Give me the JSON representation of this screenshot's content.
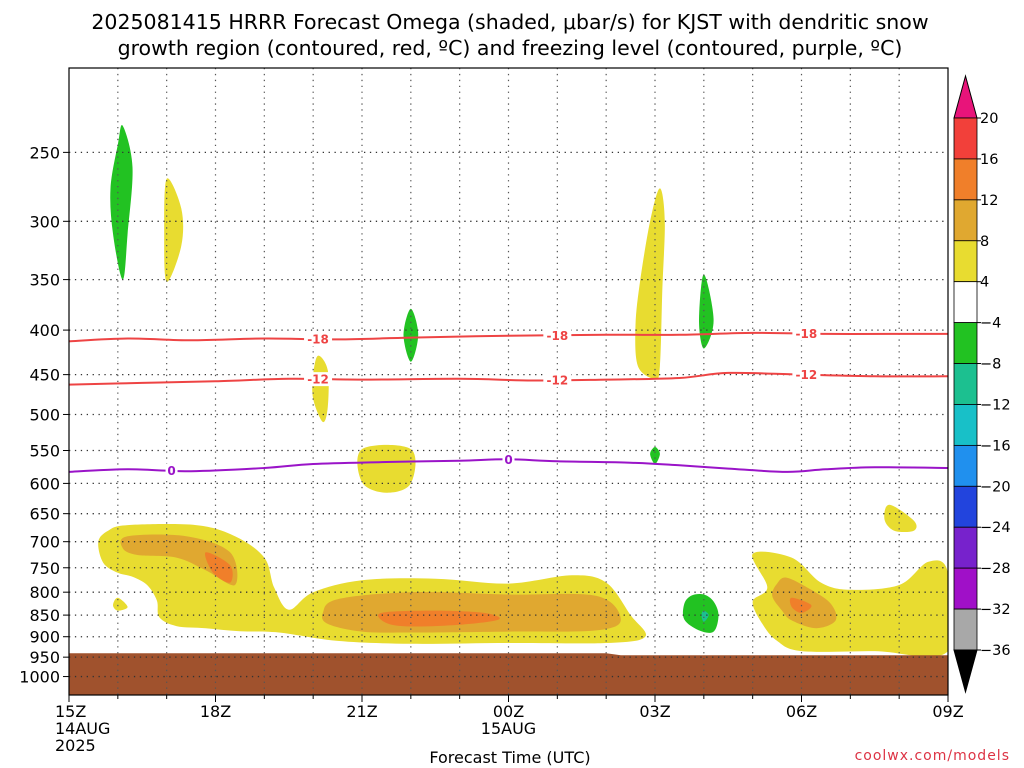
{
  "chart_data": {
    "type": "heatmap",
    "title": "2025081415 HRRR Forecast Omega (shaded, μbar/s) for KJST with dendritic snow",
    "subtitle": "growth region (contoured, red, ºC) and freezing level (contoured, purple, ºC)",
    "xlabel": "Forecast Time (UTC)",
    "ylabel": "",
    "credit": "coolwx.com/models",
    "x_range_hours": [
      0,
      18
    ],
    "y_range_hpa": [
      1050,
      200
    ],
    "y_scale": "log-pressure",
    "grid": true,
    "x_ticks": [
      {
        "hour": 0,
        "lines": [
          "15Z",
          "14AUG",
          "2025"
        ]
      },
      {
        "hour": 3,
        "lines": [
          "18Z"
        ]
      },
      {
        "hour": 6,
        "lines": [
          "21Z"
        ]
      },
      {
        "hour": 9,
        "lines": [
          "00Z",
          "15AUG"
        ]
      },
      {
        "hour": 12,
        "lines": [
          "03Z"
        ]
      },
      {
        "hour": 15,
        "lines": [
          "06Z"
        ]
      },
      {
        "hour": 18,
        "lines": [
          "09Z"
        ]
      }
    ],
    "y_ticks": [
      250,
      300,
      350,
      400,
      450,
      500,
      550,
      600,
      650,
      700,
      750,
      800,
      850,
      900,
      950,
      1000
    ],
    "colorbar": {
      "labels": [
        "20",
        "16",
        "12",
        "8",
        "4",
        "−4",
        "−8",
        "−12",
        "−16",
        "−20",
        "−24",
        "−28",
        "−32",
        "−36"
      ],
      "bins": [
        {
          "low": 16,
          "high": 20,
          "color": "#f2403a"
        },
        {
          "low": 12,
          "high": 16,
          "color": "#f07f2a"
        },
        {
          "low": 8,
          "high": 12,
          "color": "#e0a830"
        },
        {
          "low": 4,
          "high": 8,
          "color": "#e8dc30"
        },
        {
          "low": -4,
          "high": 4,
          "color": "#ffffff"
        },
        {
          "low": -8,
          "high": -4,
          "color": "#22c222"
        },
        {
          "low": -12,
          "high": -8,
          "color": "#1cc090"
        },
        {
          "low": -16,
          "high": -12,
          "color": "#18c0c8"
        },
        {
          "low": -20,
          "high": -16,
          "color": "#2090ee"
        },
        {
          "low": -24,
          "high": -20,
          "color": "#2244dd"
        },
        {
          "low": -28,
          "high": -24,
          "color": "#7722cc"
        },
        {
          "low": -32,
          "high": -28,
          "color": "#a010c8"
        },
        {
          "low": -36,
          "high": -32,
          "color": "#a8a8a8"
        }
      ],
      "above_color": "#e8147a",
      "below_color": "#000000"
    },
    "surface": {
      "color": "#a0522d",
      "top_hpa_hours": [
        [
          0,
          940
        ],
        [
          11,
          940
        ],
        [
          11.3,
          945
        ],
        [
          18,
          945
        ]
      ]
    },
    "contours": [
      {
        "label": "-18",
        "color": "#ee4444",
        "points": [
          [
            0,
            412
          ],
          [
            1.2,
            409
          ],
          [
            2.5,
            411
          ],
          [
            4,
            409
          ],
          [
            5.5,
            410
          ],
          [
            7,
            408
          ],
          [
            9,
            406
          ],
          [
            11,
            405
          ],
          [
            12.5,
            405
          ],
          [
            14,
            403
          ],
          [
            15.5,
            404
          ],
          [
            17,
            404
          ],
          [
            18,
            404
          ]
        ],
        "label_hours": [
          5.1,
          10.0,
          15.1
        ]
      },
      {
        "label": "-12",
        "color": "#ee4444",
        "points": [
          [
            0,
            462
          ],
          [
            1.5,
            460
          ],
          [
            3,
            458
          ],
          [
            4.5,
            455
          ],
          [
            6,
            456
          ],
          [
            8,
            455
          ],
          [
            9.5,
            457
          ],
          [
            11,
            456
          ],
          [
            12.5,
            454
          ],
          [
            13.5,
            448
          ],
          [
            15,
            450
          ],
          [
            16.5,
            452
          ],
          [
            18,
            452
          ]
        ],
        "label_hours": [
          5.1,
          10.0,
          15.1
        ]
      },
      {
        "label": "0",
        "color": "#9a14c8",
        "points": [
          [
            0,
            582
          ],
          [
            1.2,
            578
          ],
          [
            2.5,
            581
          ],
          [
            4,
            576
          ],
          [
            5,
            570
          ],
          [
            6.5,
            567
          ],
          [
            8,
            565
          ],
          [
            9,
            563
          ],
          [
            10,
            566
          ],
          [
            11.5,
            568
          ],
          [
            12.5,
            572
          ],
          [
            13.5,
            577
          ],
          [
            14.7,
            582
          ],
          [
            15.5,
            578
          ],
          [
            16.5,
            575
          ],
          [
            18,
            576
          ]
        ],
        "label_hours": [
          2.1,
          9.0
        ]
      }
    ],
    "shaded_regions": [
      {
        "value": -5,
        "points": [
          [
            1.1,
            233
          ],
          [
            1.3,
            260
          ],
          [
            1.2,
            310
          ],
          [
            1.1,
            350
          ],
          [
            0.9,
            310
          ],
          [
            0.85,
            275
          ],
          [
            1.0,
            245
          ]
        ]
      },
      {
        "value": 5,
        "points": [
          [
            2.0,
            268
          ],
          [
            2.3,
            290
          ],
          [
            2.3,
            320
          ],
          [
            2.0,
            352
          ],
          [
            1.95,
            310
          ]
        ]
      },
      {
        "value": -5,
        "points": [
          [
            7.0,
            378
          ],
          [
            7.15,
            405
          ],
          [
            7.0,
            435
          ],
          [
            6.85,
            405
          ]
        ]
      },
      {
        "value": 5,
        "points": [
          [
            5.1,
            428
          ],
          [
            5.3,
            445
          ],
          [
            5.3,
            490
          ],
          [
            5.2,
            510
          ],
          [
            5.0,
            480
          ],
          [
            5.0,
            450
          ]
        ]
      },
      {
        "value": 5,
        "points": [
          [
            12.1,
            275
          ],
          [
            12.2,
            300
          ],
          [
            12.15,
            360
          ],
          [
            12.1,
            440
          ],
          [
            12.0,
            455
          ],
          [
            11.65,
            440
          ],
          [
            11.6,
            395
          ],
          [
            11.7,
            350
          ],
          [
            11.9,
            300
          ]
        ]
      },
      {
        "value": -5,
        "points": [
          [
            13.0,
            345
          ],
          [
            13.2,
            390
          ],
          [
            13.0,
            420
          ],
          [
            12.9,
            390
          ]
        ]
      },
      {
        "value": -5,
        "points": [
          [
            12.0,
            545
          ],
          [
            12.1,
            555
          ],
          [
            12.0,
            570
          ],
          [
            11.9,
            555
          ]
        ]
      },
      {
        "value": 5,
        "points": [
          [
            6.0,
            548
          ],
          [
            7.0,
            548
          ],
          [
            7.0,
            600
          ],
          [
            6.5,
            615
          ],
          [
            6.0,
            598
          ]
        ]
      },
      {
        "value": 5,
        "points": [
          [
            16.8,
            635
          ],
          [
            17.3,
            662
          ],
          [
            17.3,
            680
          ],
          [
            16.9,
            680
          ],
          [
            16.7,
            660
          ]
        ]
      },
      {
        "value": 5,
        "points": [
          [
            1.0,
            812
          ],
          [
            1.2,
            832
          ],
          [
            1.0,
            840
          ],
          [
            0.9,
            828
          ]
        ]
      },
      {
        "value": -5,
        "points": [
          [
            13.0,
            805
          ],
          [
            13.2,
            820
          ],
          [
            13.3,
            850
          ],
          [
            13.2,
            888
          ],
          [
            12.9,
            885
          ],
          [
            12.6,
            860
          ],
          [
            12.6,
            825
          ],
          [
            12.75,
            807
          ]
        ]
      },
      {
        "value": -10,
        "points": [
          [
            13.0,
            840
          ],
          [
            13.1,
            850
          ],
          [
            13.0,
            865
          ],
          [
            12.95,
            850
          ]
        ]
      },
      {
        "value": 5,
        "points": [
          [
            1.2,
            670
          ],
          [
            2.6,
            670
          ],
          [
            3.4,
            690
          ],
          [
            4.0,
            730
          ],
          [
            4.2,
            790
          ],
          [
            4.5,
            838
          ],
          [
            5.0,
            800
          ],
          [
            6.0,
            775
          ],
          [
            7.5,
            772
          ],
          [
            9.0,
            782
          ],
          [
            10.3,
            765
          ],
          [
            11.0,
            780
          ],
          [
            11.5,
            850
          ],
          [
            11.8,
            900
          ],
          [
            11.0,
            915
          ],
          [
            9.0,
            915
          ],
          [
            7.0,
            917
          ],
          [
            5.5,
            910
          ],
          [
            4.3,
            890
          ],
          [
            3.5,
            887
          ],
          [
            2.8,
            880
          ],
          [
            2.2,
            875
          ],
          [
            1.85,
            855
          ],
          [
            1.8,
            818
          ],
          [
            1.6,
            785
          ],
          [
            1.3,
            768
          ],
          [
            1.0,
            760
          ],
          [
            0.7,
            740
          ],
          [
            0.6,
            700
          ],
          [
            0.8,
            680
          ]
        ]
      },
      {
        "value": 10,
        "points": [
          [
            1.2,
            690
          ],
          [
            2.4,
            690
          ],
          [
            3.3,
            720
          ],
          [
            3.4,
            785
          ],
          [
            2.8,
            755
          ],
          [
            2.2,
            730
          ],
          [
            1.4,
            725
          ],
          [
            1.1,
            712
          ]
        ]
      },
      {
        "value": 14,
        "points": [
          [
            2.8,
            720
          ],
          [
            3.3,
            745
          ],
          [
            3.3,
            780
          ],
          [
            2.95,
            760
          ]
        ]
      },
      {
        "value": 10,
        "points": [
          [
            5.5,
            815
          ],
          [
            7.0,
            800
          ],
          [
            9.0,
            805
          ],
          [
            10.8,
            808
          ],
          [
            11.3,
            860
          ],
          [
            10.8,
            885
          ],
          [
            9.0,
            888
          ],
          [
            7.0,
            890
          ],
          [
            6.0,
            888
          ],
          [
            5.3,
            870
          ],
          [
            5.2,
            845
          ]
        ]
      },
      {
        "value": 14,
        "points": [
          [
            6.4,
            845
          ],
          [
            7.5,
            840
          ],
          [
            8.5,
            845
          ],
          [
            8.8,
            860
          ],
          [
            8.0,
            872
          ],
          [
            7.0,
            876
          ],
          [
            6.5,
            868
          ]
        ]
      },
      {
        "value": 5,
        "points": [
          [
            14.0,
            723
          ],
          [
            14.8,
            730
          ],
          [
            15.4,
            780
          ],
          [
            16.0,
            795
          ],
          [
            17.0,
            785
          ],
          [
            17.6,
            738
          ],
          [
            18.0,
            760
          ],
          [
            18.0,
            935
          ],
          [
            16.5,
            935
          ],
          [
            15.0,
            935
          ],
          [
            14.5,
            910
          ],
          [
            14.2,
            870
          ],
          [
            14.0,
            820
          ],
          [
            14.3,
            790
          ]
        ]
      },
      {
        "value": 10,
        "points": [
          [
            14.7,
            770
          ],
          [
            15.2,
            795
          ],
          [
            15.6,
            825
          ],
          [
            15.7,
            862
          ],
          [
            15.3,
            880
          ],
          [
            14.8,
            862
          ],
          [
            14.6,
            840
          ],
          [
            14.4,
            808
          ],
          [
            14.5,
            782
          ]
        ]
      },
      {
        "value": 14,
        "points": [
          [
            14.8,
            812
          ],
          [
            15.2,
            828
          ],
          [
            15.0,
            845
          ],
          [
            14.8,
            832
          ]
        ]
      }
    ]
  }
}
